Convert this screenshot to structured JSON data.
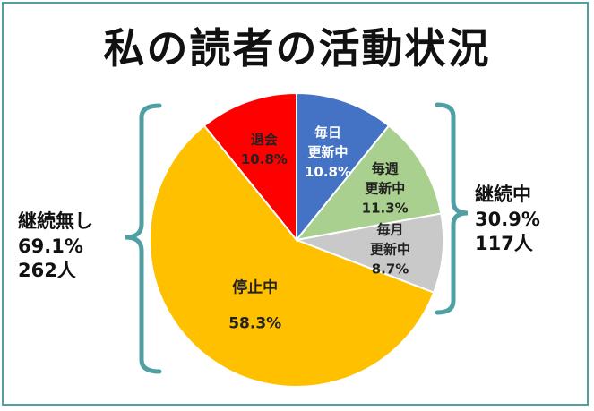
{
  "chart_data": {
    "type": "pie",
    "title": "私の読者の活動状況",
    "slices": [
      {
        "label_lines": [
          "毎日",
          "更新中"
        ],
        "value": 10.8,
        "value_label": "10.8%",
        "color": "#4472c4",
        "text_color": "#ffffff"
      },
      {
        "label_lines": [
          "毎週",
          "更新中"
        ],
        "value": 11.3,
        "value_label": "11.3%",
        "color": "#a9d08e",
        "text_color": "#222222"
      },
      {
        "label_lines": [
          "毎月",
          "更新中"
        ],
        "value": 8.7,
        "value_label": "8.7%",
        "color": "#c9c9c9",
        "text_color": "#222222"
      },
      {
        "label_lines": [
          "停止中"
        ],
        "value": 58.3,
        "value_label": "58.3%",
        "color": "#ffc000",
        "text_color": "#222222"
      },
      {
        "label_lines": [
          "退会"
        ],
        "value": 10.8,
        "value_label": "10.8%",
        "color": "#ff0000",
        "text_color": "#222222"
      }
    ],
    "groups": {
      "active": {
        "label": "継続中",
        "percent": "30.9%",
        "count": "117人"
      },
      "inactive": {
        "label": "継続無し",
        "percent": "69.1%",
        "count": "262人"
      }
    },
    "bracket_color": "#4f9fa3"
  }
}
